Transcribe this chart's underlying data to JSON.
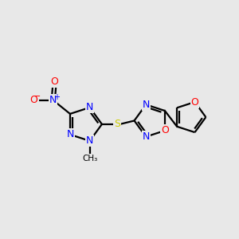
{
  "background_color": "#e8e8e8",
  "bond_color": "#000000",
  "N_color": "#0000ff",
  "O_color": "#ff0000",
  "S_color": "#cccc00",
  "line_width": 1.6,
  "figsize": [
    3.0,
    3.0
  ],
  "dpi": 100,
  "xlim": [
    0,
    10
  ],
  "ylim": [
    0,
    10
  ]
}
